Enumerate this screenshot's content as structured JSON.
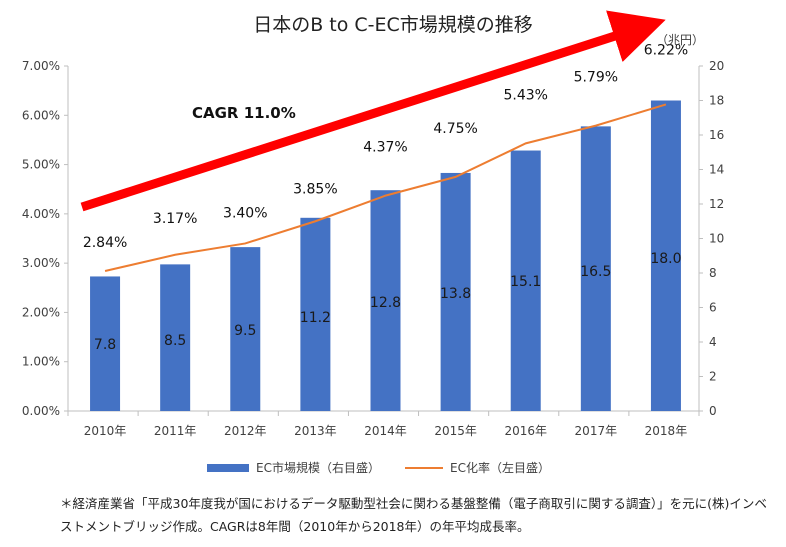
{
  "title": "日本のB to C-EC市場規模の推移",
  "unit_label": "（兆円）",
  "cagr_label": "CAGR  11.0%",
  "source_note": "＊経済産業省「平成30年度我が国におけるデータ駆動型社会に関わる基盤整備（電子商取引に関する調査）」を元に(株)インベストメントブリッジ作成。CAGRは8年間（2010年から2018年）の年平均成長率。",
  "colors": {
    "bar": "#4472C4",
    "line": "#ED7D31",
    "arrow": "#FF0000"
  },
  "chart_data": {
    "type": "bar",
    "categories": [
      "2010年",
      "2011年",
      "2012年",
      "2013年",
      "2014年",
      "2015年",
      "2016年",
      "2017年",
      "2018年"
    ],
    "series": [
      {
        "name": "EC市場規模（右目盛）",
        "type": "bar",
        "axis": "right",
        "values": [
          7.8,
          8.5,
          9.5,
          11.2,
          12.8,
          13.8,
          15.1,
          16.5,
          18.0
        ],
        "labels": [
          "7.8",
          "8.5",
          "9.5",
          "11.2",
          "12.8",
          "13.8",
          "15.1",
          "16.5",
          "18.0"
        ]
      },
      {
        "name": "EC化率（左目盛）",
        "type": "line",
        "axis": "left",
        "values": [
          2.84,
          3.17,
          3.4,
          3.85,
          4.37,
          4.75,
          5.43,
          5.79,
          6.22
        ],
        "labels": [
          "2.84%",
          "3.17%",
          "3.40%",
          "3.85%",
          "4.37%",
          "4.75%",
          "5.43%",
          "5.79%",
          "6.22%"
        ]
      }
    ],
    "y_left": {
      "range": [
        0,
        7
      ],
      "ticks": [
        "0.00%",
        "1.00%",
        "2.00%",
        "3.00%",
        "4.00%",
        "5.00%",
        "6.00%",
        "7.00%"
      ]
    },
    "y_right": {
      "range": [
        0,
        20
      ],
      "ticks": [
        "0",
        "2",
        "4",
        "6",
        "8",
        "10",
        "12",
        "14",
        "16",
        "18",
        "20"
      ]
    },
    "legend_position": "bottom",
    "grid": false
  }
}
